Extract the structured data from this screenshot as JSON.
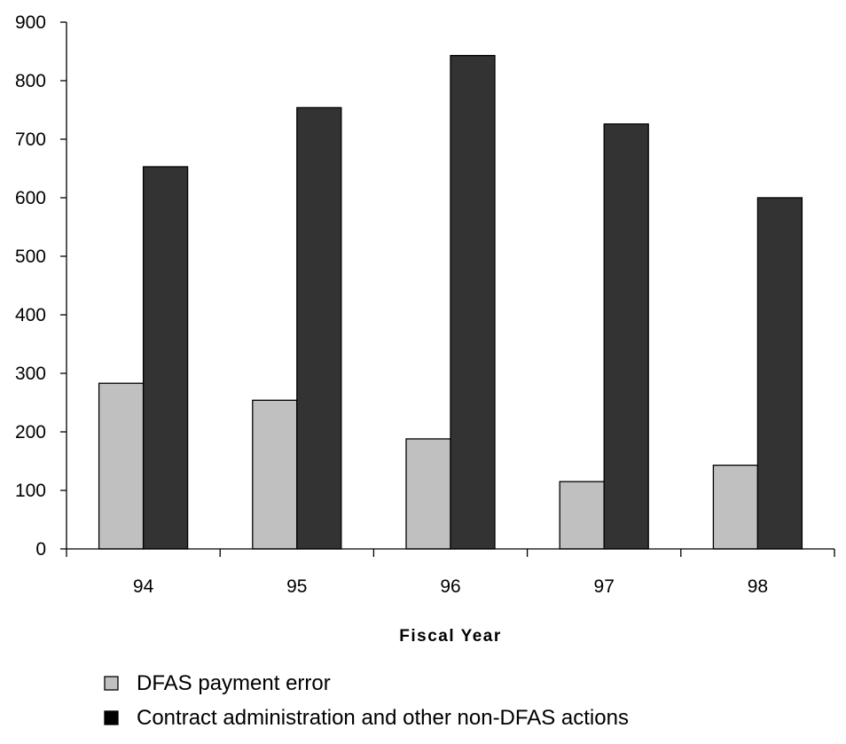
{
  "chart_data": {
    "type": "bar",
    "xlabel": "Fiscal Year",
    "ylabel": "",
    "categories": [
      "94",
      "95",
      "96",
      "97",
      "98"
    ],
    "ylim": [
      0,
      900
    ],
    "yticks": [
      0,
      100,
      200,
      300,
      400,
      500,
      600,
      700,
      800,
      900
    ],
    "grid": false,
    "legend_position": "bottom",
    "series": [
      {
        "name": "DFAS payment error",
        "color": "#c0c0c0",
        "values": [
          283,
          254,
          188,
          115,
          143
        ]
      },
      {
        "name": "Contract administration and other non-DFAS actions",
        "color": "#333333",
        "values": [
          653,
          754,
          843,
          726,
          600
        ]
      }
    ]
  }
}
